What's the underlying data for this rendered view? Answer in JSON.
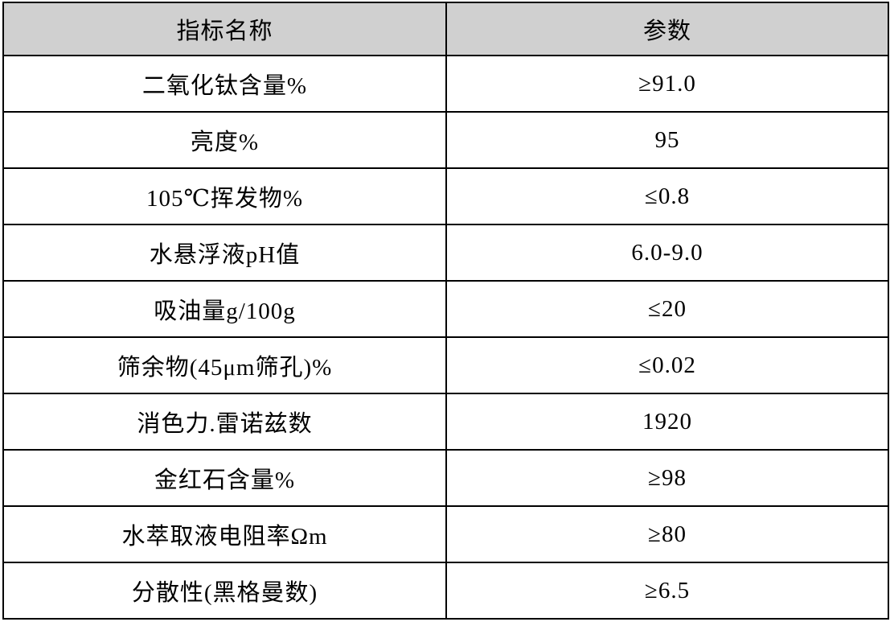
{
  "table": {
    "columns": [
      {
        "label": "指标名称"
      },
      {
        "label": "参数"
      }
    ],
    "rows": [
      {
        "name": "二氧化钛含量%",
        "value": "≥91.0"
      },
      {
        "name": "亮度%",
        "value": "95"
      },
      {
        "name": "105℃挥发物%",
        "value": "≤0.8"
      },
      {
        "name": "水悬浮液pH值",
        "value": "6.0-9.0"
      },
      {
        "name": "吸油量g/100g",
        "value": "≤20"
      },
      {
        "name": "筛余物(45μm筛孔)%",
        "value": "≤0.02"
      },
      {
        "name": "消色力.雷诺兹数",
        "value": "1920"
      },
      {
        "name": "金红石含量%",
        "value": "≥98"
      },
      {
        "name": "水萃取液电阻率Ωm",
        "value": "≥80"
      },
      {
        "name": "分散性(黑格曼数)",
        "value": "≥6.5"
      }
    ],
    "colors": {
      "header_bg": "#d0d0d0",
      "border": "#000000",
      "text": "#000000"
    }
  }
}
